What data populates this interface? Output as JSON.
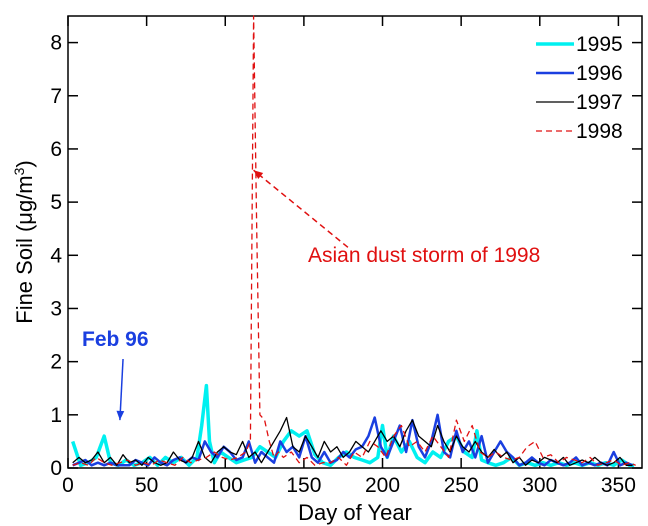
{
  "chart_data": {
    "type": "line",
    "xlabel": "Day of Year",
    "ylabel_main": "Fine Soil (μg/m",
    "ylabel_sup": "3",
    "ylabel_end": ")",
    "xlim": [
      0,
      365
    ],
    "ylim": [
      0,
      8.5
    ],
    "xticks": [
      0,
      50,
      100,
      150,
      200,
      250,
      300,
      350
    ],
    "yticks": [
      0,
      1,
      2,
      3,
      4,
      5,
      6,
      7,
      8
    ],
    "grid": false,
    "legend_position": "top-right",
    "series": [
      {
        "name": "1995",
        "color": "#00f0f0",
        "dash": "solid",
        "width": 3.5,
        "x": [
          3,
          8,
          13,
          18,
          23,
          27,
          32,
          37,
          42,
          47,
          52,
          57,
          62,
          67,
          72,
          77,
          82,
          85,
          88,
          90,
          93,
          97,
          102,
          107,
          112,
          117,
          122,
          127,
          132,
          137,
          142,
          147,
          152,
          157,
          162,
          167,
          172,
          177,
          182,
          187,
          192,
          197,
          200,
          203,
          207,
          212,
          217,
          222,
          227,
          232,
          237,
          242,
          247,
          252,
          257,
          260,
          263,
          267,
          272,
          277,
          282,
          287,
          292,
          297,
          302,
          307,
          312,
          317,
          322,
          327,
          332,
          337,
          342,
          347,
          352,
          357,
          360
        ],
        "y": [
          0.5,
          0.05,
          0.1,
          0.2,
          0.6,
          0.1,
          0.05,
          0.15,
          0.05,
          0.1,
          0.2,
          0.05,
          0.2,
          0.1,
          0.2,
          0.05,
          0.2,
          0.8,
          1.55,
          0.5,
          0.1,
          0.3,
          0.2,
          0.1,
          0.15,
          0.2,
          0.4,
          0.3,
          0.2,
          0.5,
          0.7,
          0.6,
          0.7,
          0.25,
          0.1,
          0.05,
          0.2,
          0.3,
          0.2,
          0.15,
          0.1,
          0.2,
          0.8,
          0.2,
          0.6,
          0.3,
          0.5,
          0.2,
          0.1,
          0.3,
          0.2,
          0.5,
          0.6,
          0.3,
          0.2,
          0.7,
          0.15,
          0.1,
          0.05,
          0.1,
          0.2,
          0.05,
          0.1,
          0.05,
          0.1,
          0.05,
          0.1,
          0.05,
          0.1,
          0.05,
          0.1,
          0.05,
          0.1,
          0.05,
          0.15,
          0.05,
          0.05
        ]
      },
      {
        "name": "1996",
        "color": "#1a3fe0",
        "dash": "solid",
        "width": 2.5,
        "x": [
          3,
          7,
          11,
          15,
          19,
          23,
          27,
          31,
          35,
          39,
          43,
          47,
          51,
          55,
          59,
          63,
          67,
          71,
          75,
          79,
          83,
          87,
          91,
          95,
          99,
          103,
          107,
          111,
          115,
          119,
          123,
          127,
          131,
          135,
          139,
          143,
          147,
          151,
          155,
          159,
          163,
          167,
          171,
          175,
          179,
          183,
          187,
          191,
          195,
          199,
          203,
          207,
          211,
          215,
          219,
          223,
          227,
          231,
          235,
          239,
          243,
          247,
          251,
          255,
          259,
          263,
          267,
          271,
          275,
          279,
          283,
          287,
          291,
          295,
          299,
          303,
          307,
          311,
          315,
          319,
          323,
          327,
          331,
          335,
          339,
          343,
          347,
          351,
          355,
          359
        ],
        "y": [
          0.05,
          0.1,
          0.15,
          0.05,
          0.1,
          0.05,
          0.1,
          0.05,
          0.05,
          0.05,
          0.15,
          0.1,
          0.05,
          0.2,
          0.1,
          0.05,
          0.15,
          0.2,
          0.1,
          0.2,
          0.15,
          0.5,
          0.3,
          0.2,
          0.4,
          0.3,
          0.15,
          0.2,
          0.5,
          0.1,
          0.3,
          0.2,
          0.1,
          0.5,
          0.3,
          0.4,
          0.2,
          0.6,
          0.2,
          0.1,
          0.3,
          0.1,
          0.15,
          0.3,
          0.2,
          0.35,
          0.4,
          0.6,
          0.95,
          0.4,
          0.2,
          0.5,
          0.8,
          0.3,
          0.9,
          0.4,
          0.2,
          0.5,
          1.0,
          0.3,
          0.2,
          0.7,
          0.3,
          0.5,
          0.2,
          0.6,
          0.1,
          0.3,
          0.5,
          0.3,
          0.2,
          0.05,
          0.1,
          0.2,
          0.1,
          0.05,
          0.15,
          0.1,
          0.05,
          0.1,
          0.2,
          0.05,
          0.1,
          0.05,
          0.1,
          0.05,
          0.3,
          0.05,
          0.1,
          0.05
        ]
      },
      {
        "name": "1997",
        "color": "#000000",
        "dash": "solid",
        "width": 1.3,
        "x": [
          3,
          7,
          11,
          15,
          19,
          23,
          27,
          31,
          35,
          39,
          43,
          47,
          51,
          55,
          59,
          63,
          67,
          71,
          75,
          79,
          83,
          87,
          91,
          95,
          99,
          103,
          107,
          111,
          115,
          119,
          123,
          127,
          131,
          135,
          139,
          143,
          147,
          151,
          155,
          159,
          163,
          167,
          171,
          175,
          179,
          183,
          187,
          191,
          195,
          199,
          203,
          207,
          211,
          215,
          219,
          223,
          227,
          231,
          235,
          239,
          243,
          247,
          251,
          255,
          259,
          263,
          267,
          271,
          275,
          279,
          283,
          287,
          291,
          295,
          299,
          303,
          307,
          311,
          315,
          319,
          323,
          327,
          331,
          335,
          339,
          343,
          347,
          351,
          355,
          359
        ],
        "y": [
          0.1,
          0.2,
          0.1,
          0.15,
          0.3,
          0.1,
          0.2,
          0.05,
          0.25,
          0.1,
          0.15,
          0.05,
          0.2,
          0.1,
          0.05,
          0.1,
          0.3,
          0.15,
          0.1,
          0.2,
          0.5,
          0.2,
          0.1,
          0.3,
          0.4,
          0.3,
          0.25,
          0.5,
          0.2,
          0.3,
          0.1,
          0.3,
          0.5,
          0.7,
          0.95,
          0.4,
          0.3,
          0.6,
          0.4,
          0.2,
          0.5,
          0.3,
          0.4,
          0.2,
          0.3,
          0.5,
          0.4,
          0.3,
          0.5,
          0.7,
          0.5,
          0.6,
          0.4,
          0.7,
          0.9,
          0.6,
          0.5,
          0.4,
          0.8,
          0.5,
          0.3,
          0.6,
          0.4,
          0.3,
          0.5,
          0.3,
          0.2,
          0.35,
          0.2,
          0.3,
          0.1,
          0.2,
          0.05,
          0.15,
          0.1,
          0.2,
          0.15,
          0.1,
          0.2,
          0.05,
          0.1,
          0.15,
          0.1,
          0.2,
          0.1,
          0.05,
          0.1,
          0.2,
          0.05,
          0.05
        ]
      },
      {
        "name": "1998",
        "color": "#e01010",
        "dash": "6,4",
        "width": 1.3,
        "x": [
          3,
          8,
          13,
          18,
          23,
          28,
          33,
          38,
          43,
          48,
          53,
          58,
          63,
          68,
          73,
          78,
          83,
          88,
          93,
          98,
          103,
          108,
          113,
          116,
          118,
          120,
          122,
          125,
          128,
          131,
          134,
          137,
          142,
          147,
          152,
          157,
          162,
          167,
          172,
          177,
          182,
          187,
          192,
          197,
          202,
          207,
          212,
          217,
          222,
          227,
          232,
          237,
          242,
          247,
          252,
          257,
          262,
          267,
          272,
          277,
          282,
          287,
          292,
          297,
          302,
          307,
          312,
          317,
          322,
          327,
          332,
          337,
          342,
          347,
          352,
          357,
          361
        ],
        "y": [
          0.05,
          0.1,
          0.05,
          0.2,
          0.1,
          0.05,
          0.1,
          0.15,
          0.05,
          0.1,
          0.05,
          0.15,
          0.1,
          0.05,
          0.2,
          0.1,
          0.15,
          0.2,
          0.3,
          0.2,
          0.15,
          0.2,
          0.3,
          0.5,
          8.5,
          4.5,
          1.0,
          0.9,
          0.5,
          0.2,
          0.3,
          0.2,
          0.3,
          0.1,
          0.2,
          0.05,
          0.1,
          0.1,
          0.2,
          0.05,
          0.3,
          0.2,
          0.5,
          0.4,
          0.2,
          0.6,
          0.8,
          0.4,
          0.5,
          0.3,
          0.6,
          0.4,
          0.2,
          0.9,
          0.5,
          0.8,
          0.3,
          0.2,
          0.3,
          0.2,
          0.15,
          0.2,
          0.4,
          0.5,
          0.2,
          0.25,
          0.1,
          0.2,
          0.15,
          0.1,
          0.2,
          0.05,
          0.1,
          0.15,
          0.05,
          0.1,
          0.05
        ]
      }
    ],
    "annotations": [
      {
        "id": "dust",
        "text": "Asian dust storm of 1998",
        "color": "#e01010",
        "arrow_from": [
          178,
          4.15
        ],
        "arrow_to": [
          118,
          5.6
        ],
        "dash": "6,4"
      },
      {
        "id": "feb",
        "text": "Feb 96",
        "color": "#1a3fe0",
        "arrow_from": [
          35,
          2.05
        ],
        "arrow_to": [
          33,
          0.9
        ],
        "dash": "solid"
      }
    ]
  }
}
